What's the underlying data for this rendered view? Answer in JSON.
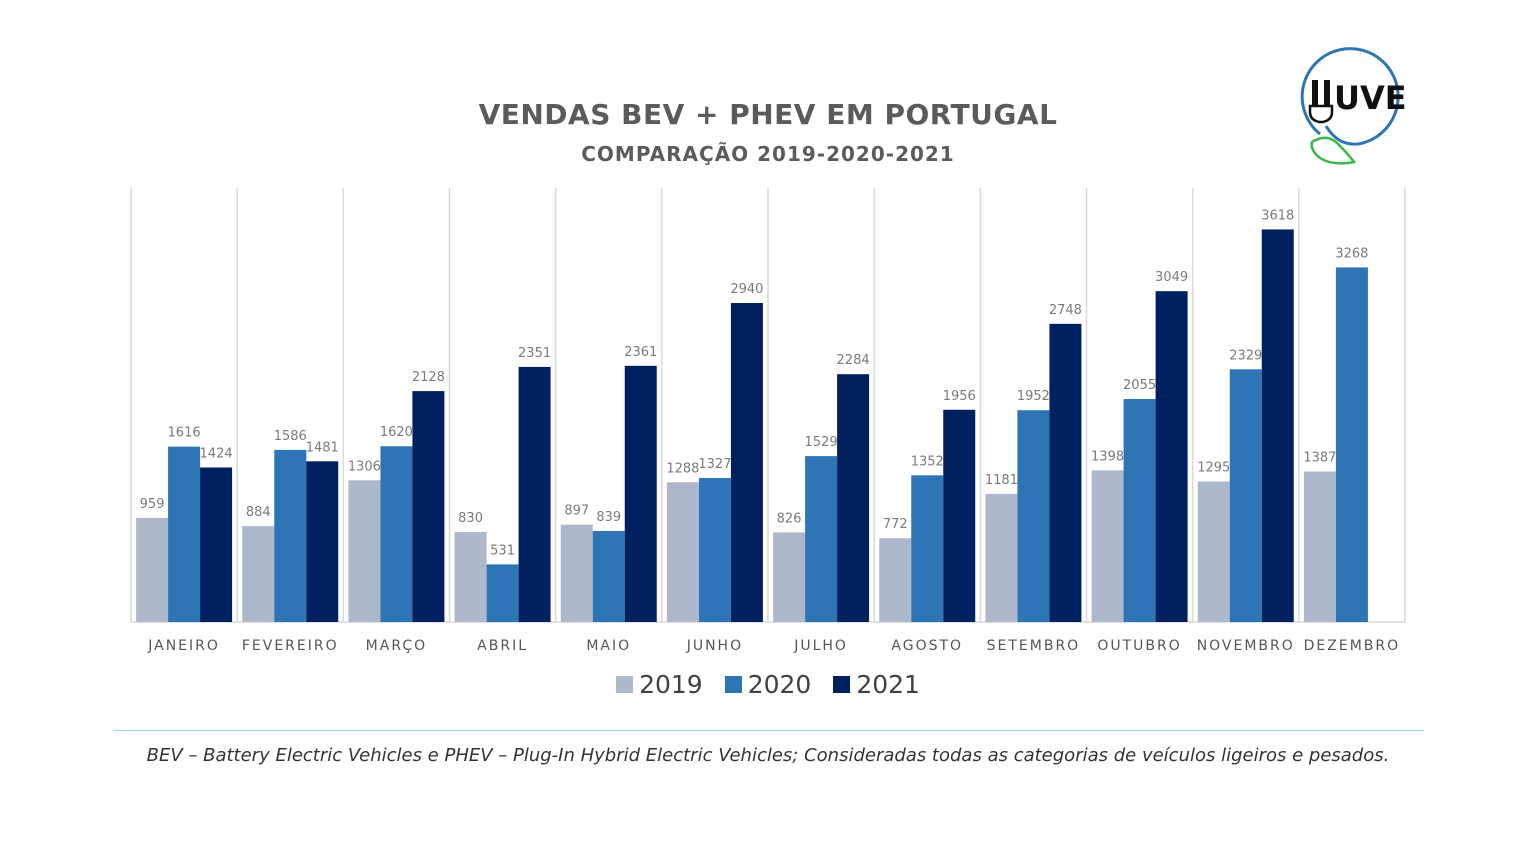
{
  "header": {
    "title": "VENDAS BEV + PHEV EM PORTUGAL",
    "subtitle": "COMPARAÇÃO 2019-2020-2021"
  },
  "logo": {
    "text": "UVE",
    "icon": "plug-leaf-logo-icon"
  },
  "footnote": "BEV – Battery Electric Vehicles e PHEV – Plug-In Hybrid Electric Vehicles; Consideradas todas as categorias de veículos ligeiros e pesados.",
  "chart_data": {
    "type": "bar",
    "title": "VENDAS BEV + PHEV EM PORTUGAL",
    "subtitle": "COMPARAÇÃO 2019-2020-2021",
    "xlabel": "",
    "ylabel": "",
    "ylim": [
      0,
      4000
    ],
    "grid": "vertical category separators",
    "legend_position": "bottom",
    "categories": [
      "JANEIRO",
      "FEVEREIRO",
      "MARÇO",
      "ABRIL",
      "MAIO",
      "JUNHO",
      "JULHO",
      "AGOSTO",
      "SETEMBRO",
      "OUTUBRO",
      "NOVEMBRO",
      "DEZEMBRO"
    ],
    "series": [
      {
        "name": "2019",
        "color": "#adb9ca",
        "values": [
          959,
          884,
          1306,
          830,
          897,
          1288,
          826,
          772,
          1181,
          1398,
          1295,
          1387
        ]
      },
      {
        "name": "2020",
        "color": "#2e75b6",
        "values": [
          1616,
          1586,
          1620,
          531,
          839,
          1327,
          1529,
          1352,
          1952,
          2055,
          2329,
          3268
        ]
      },
      {
        "name": "2021",
        "color": "#002060",
        "values": [
          1424,
          1481,
          2128,
          2351,
          2361,
          2940,
          2284,
          1956,
          2748,
          3049,
          3618,
          null
        ]
      }
    ]
  }
}
